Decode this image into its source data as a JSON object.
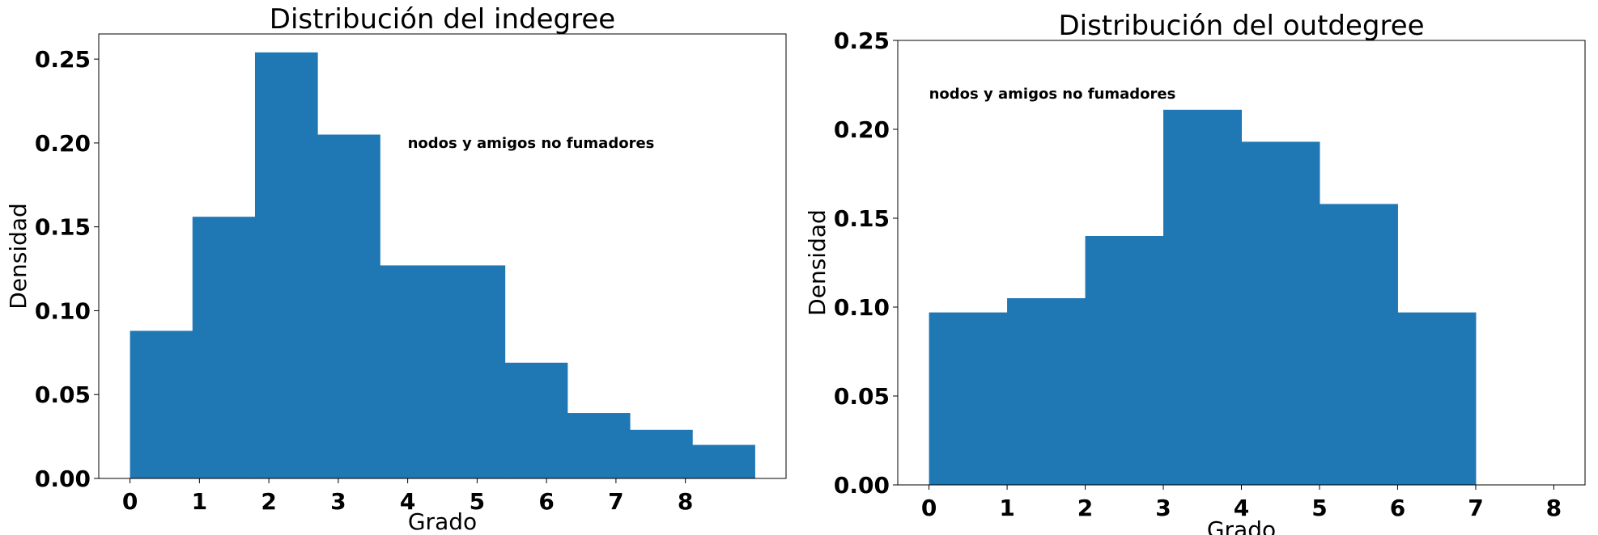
{
  "chart_data": [
    {
      "type": "bar",
      "title": "Distribución del indegree",
      "xlabel": "Grado",
      "ylabel": "Densidad",
      "xlim": [
        -0.45,
        9.45
      ],
      "ylim": [
        0,
        0.265
      ],
      "xticks": [
        0,
        1,
        2,
        3,
        4,
        5,
        6,
        7,
        8
      ],
      "yticks": [
        "0.00",
        "0.05",
        "0.10",
        "0.15",
        "0.20",
        "0.25"
      ],
      "bin_edges": [
        0,
        0.9,
        1.8,
        2.7,
        3.6,
        4.5,
        5.4,
        6.3,
        7.2,
        8.1,
        9.0
      ],
      "values": [
        0.088,
        0.156,
        0.254,
        0.205,
        0.127,
        0.127,
        0.069,
        0.039,
        0.029,
        0.02
      ],
      "annotation": {
        "text": "nodos y amigos no fumadores",
        "x": 4.0,
        "y": 0.2
      },
      "color": "#1f77b4",
      "grid": false
    },
    {
      "type": "bar",
      "title": "Distribución del outdegree",
      "xlabel": "Grado",
      "ylabel": "Densidad",
      "xlim": [
        -0.4,
        8.4
      ],
      "ylim": [
        0,
        0.25
      ],
      "xticks": [
        0,
        1,
        2,
        3,
        4,
        5,
        6,
        7,
        8
      ],
      "yticks": [
        "0.00",
        "0.05",
        "0.10",
        "0.15",
        "0.20",
        "0.25"
      ],
      "bin_edges": [
        0,
        1,
        2,
        3,
        4,
        5,
        6,
        7
      ],
      "values": [
        0.097,
        0.105,
        0.14,
        0.211,
        0.193,
        0.158,
        0.097
      ],
      "annotation": {
        "text": "nodos y amigos no fumadores",
        "x": 0.0,
        "y": 0.22
      },
      "color": "#1f77b4",
      "grid": false
    }
  ]
}
